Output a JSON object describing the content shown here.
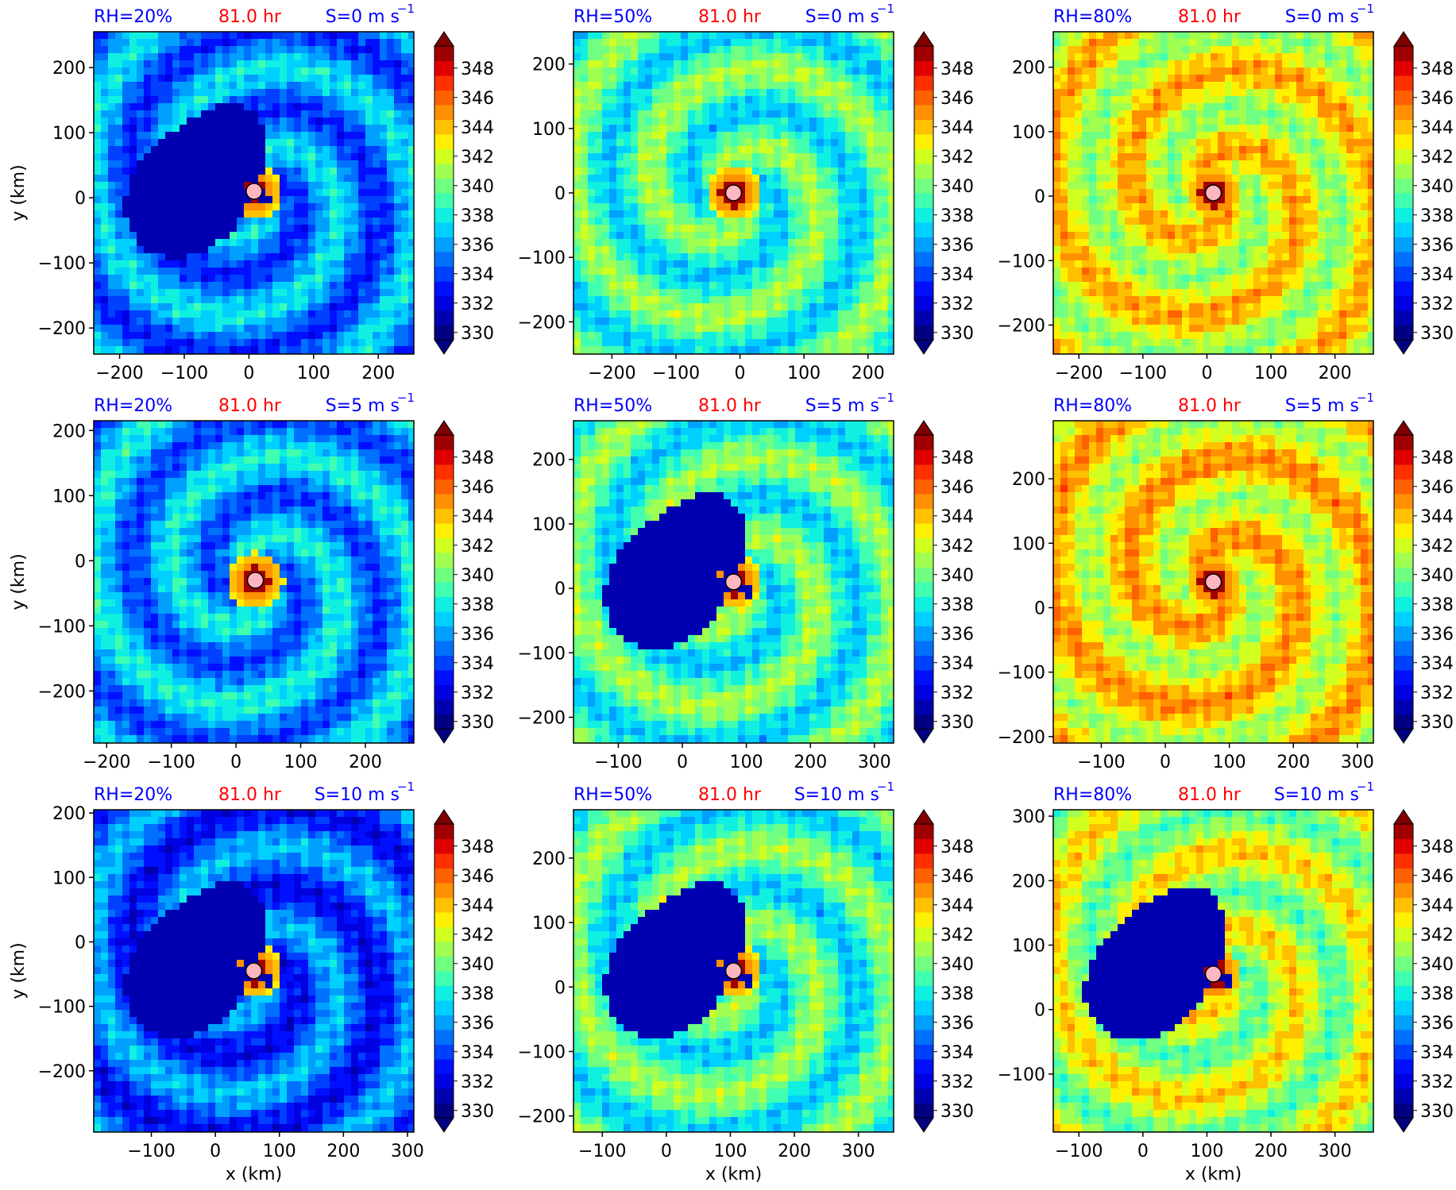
{
  "figure": {
    "title_time": "81.0 hr",
    "x_label": "x (km)",
    "y_label": "y (km)",
    "colorbar_ticks": [
      "330",
      "332",
      "334",
      "336",
      "338",
      "340",
      "342",
      "344",
      "346",
      "348"
    ],
    "colorbar_levels": [
      330,
      331,
      332,
      333,
      334,
      335,
      336,
      337,
      338,
      339,
      340,
      341,
      342,
      343,
      344,
      345,
      346,
      347,
      348,
      349
    ],
    "colors": {
      "label_blue": "#0000ff",
      "label_red": "#ff0000",
      "center_marker": "#ffb6c1",
      "cmap": [
        "#000080",
        "#0000b0",
        "#0000e0",
        "#0010ff",
        "#0040ff",
        "#0070ff",
        "#00a0ff",
        "#00d0ff",
        "#10f0e0",
        "#40ffb0",
        "#70ff80",
        "#a0ff50",
        "#d0ff20",
        "#fff000",
        "#ffc000",
        "#ff9000",
        "#ff6000",
        "#ff3000",
        "#e00000",
        "#a00000",
        "#800000"
      ]
    }
  },
  "chart_data": [
    {
      "type": "heatmap",
      "rh_label": "RH=20%",
      "time_label": "81.0 hr",
      "shear_label": "S=0 m s",
      "shear_exp": "−1",
      "xlim": [
        -240,
        255
      ],
      "ylim": [
        -240,
        255
      ],
      "xticks": [
        "−200",
        "−100",
        "0",
        "100",
        "200"
      ],
      "yticks": [
        "−200",
        "−100",
        "0",
        "100",
        "200"
      ],
      "center": [
        8,
        10
      ],
      "theta_mean": 336.0,
      "dry_region": true
    },
    {
      "type": "heatmap",
      "rh_label": "RH=50%",
      "time_label": "81.0 hr",
      "shear_label": "S=0 m s",
      "shear_exp": "−1",
      "xlim": [
        -260,
        240
      ],
      "ylim": [
        -250,
        250
      ],
      "xticks": [
        "−200",
        "−100",
        "0",
        "100",
        "200"
      ],
      "yticks": [
        "−200",
        "−100",
        "0",
        "100",
        "200"
      ],
      "center": [
        -10,
        0
      ],
      "theta_mean": 339.5,
      "dry_region": false
    },
    {
      "type": "heatmap",
      "rh_label": "RH=80%",
      "time_label": "81.0 hr",
      "shear_label": "S=0 m s",
      "shear_exp": "−1",
      "xlim": [
        -240,
        260
      ],
      "ylim": [
        -245,
        255
      ],
      "xticks": [
        "−200",
        "−100",
        "0",
        "100",
        "200"
      ],
      "yticks": [
        "−200",
        "−100",
        "0",
        "100",
        "200"
      ],
      "center": [
        10,
        5
      ],
      "theta_mean": 343.0,
      "dry_region": false
    },
    {
      "type": "heatmap",
      "rh_label": "RH=20%",
      "time_label": "81.0 hr",
      "shear_label": "S=5 m s",
      "shear_exp": "−1",
      "xlim": [
        -220,
        275
      ],
      "ylim": [
        -280,
        215
      ],
      "xticks": [
        "−200",
        "−100",
        "0",
        "100",
        "200"
      ],
      "yticks": [
        "−200",
        "−100",
        "0",
        "100",
        "200"
      ],
      "center": [
        30,
        -30
      ],
      "theta_mean": 336.5,
      "dry_region": false
    },
    {
      "type": "heatmap",
      "rh_label": "RH=50%",
      "time_label": "81.0 hr",
      "shear_label": "S=5 m s",
      "shear_exp": "−1",
      "xlim": [
        -170,
        330
      ],
      "ylim": [
        -240,
        260
      ],
      "xticks": [
        "−100",
        "0",
        "100",
        "200",
        "300"
      ],
      "yticks": [
        "−200",
        "−100",
        "0",
        "100",
        "200"
      ],
      "center": [
        80,
        10
      ],
      "theta_mean": 339.5,
      "dry_region": true
    },
    {
      "type": "heatmap",
      "rh_label": "RH=80%",
      "time_label": "81.0 hr",
      "shear_label": "S=5 m s",
      "shear_exp": "−1",
      "xlim": [
        -175,
        325
      ],
      "ylim": [
        -210,
        290
      ],
      "xticks": [
        "−100",
        "0",
        "100",
        "200",
        "300"
      ],
      "yticks": [
        "−200",
        "−100",
        "0",
        "100",
        "200"
      ],
      "center": [
        75,
        40
      ],
      "theta_mean": 343.5,
      "dry_region": false
    },
    {
      "type": "heatmap",
      "rh_label": "RH=20%",
      "time_label": "81.0 hr",
      "shear_label": "S=10 m s",
      "shear_exp": "−1",
      "xlim": [
        -190,
        310
      ],
      "ylim": [
        -295,
        205
      ],
      "xticks": [
        "−100",
        "0",
        "100",
        "200",
        "300"
      ],
      "yticks": [
        "−200",
        "−100",
        "0",
        "100",
        "200"
      ],
      "center": [
        60,
        -45
      ],
      "theta_mean": 335.0,
      "dry_region": true
    },
    {
      "type": "heatmap",
      "rh_label": "RH=50%",
      "time_label": "81.0 hr",
      "shear_label": "S=10 m s",
      "shear_exp": "−1",
      "xlim": [
        -145,
        355
      ],
      "ylim": [
        -225,
        275
      ],
      "xticks": [
        "−100",
        "0",
        "100",
        "200",
        "300"
      ],
      "yticks": [
        "−200",
        "−100",
        "0",
        "100",
        "200"
      ],
      "center": [
        105,
        25
      ],
      "theta_mean": 339.5,
      "dry_region": true
    },
    {
      "type": "heatmap",
      "rh_label": "RH=80%",
      "time_label": "81.0 hr",
      "shear_label": "S=10 m s",
      "shear_exp": "−1",
      "xlim": [
        -140,
        360
      ],
      "ylim": [
        -190,
        310
      ],
      "xticks": [
        "−100",
        "0",
        "100",
        "200",
        "300"
      ],
      "yticks": [
        "−100",
        "0",
        "100",
        "200",
        "300"
      ],
      "center": [
        110,
        55
      ],
      "theta_mean": 342.0,
      "dry_region": true
    }
  ]
}
